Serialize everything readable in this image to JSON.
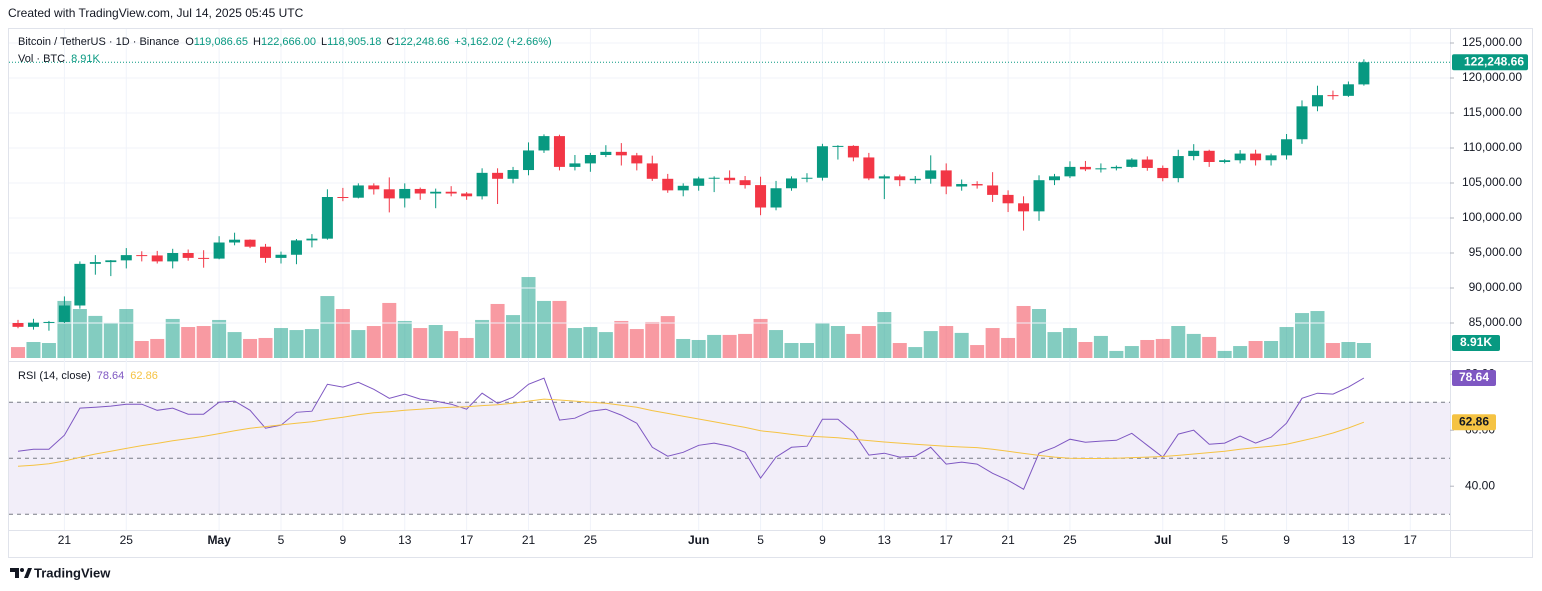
{
  "page": {
    "created": "Created with TradingView.com, Jul 14, 2025 05:45 UTC",
    "brand": "TradingView"
  },
  "chart_data": [
    {
      "type": "candlestick",
      "title": "Bitcoin / TetherUS · 1D · Binance",
      "legend_labels": [
        "O",
        "H",
        "L",
        "C"
      ],
      "legend_values": [
        "119,086.65",
        "122,666.00",
        "118,905.18",
        "122,248.66"
      ],
      "change": "+3,162.02 (+2.66%)",
      "up_color": "#089981",
      "down_color": "#f23645",
      "categories": [
        null,
        null,
        null,
        "21",
        null,
        null,
        null,
        "25",
        null,
        null,
        null,
        null,
        null,
        "May",
        null,
        null,
        null,
        "5",
        null,
        null,
        null,
        "9",
        null,
        null,
        null,
        "13",
        null,
        null,
        null,
        "17",
        null,
        null,
        null,
        "21",
        null,
        null,
        null,
        "25",
        null,
        null,
        null,
        null,
        null,
        null,
        "Jun",
        null,
        null,
        null,
        "5",
        null,
        null,
        null,
        "9",
        null,
        null,
        null,
        "13",
        null,
        null,
        null,
        "17",
        null,
        null,
        null,
        "21",
        null,
        null,
        null,
        "25",
        null,
        null,
        null,
        null,
        null,
        "Jul",
        null,
        null,
        null,
        "5",
        null,
        null,
        null,
        "9",
        null,
        null,
        null,
        "13",
        null,
        null,
        null,
        "17",
        null,
        null
      ],
      "open": [
        85000,
        84450,
        85050,
        85150,
        87500,
        93450,
        93700,
        93950,
        94700,
        94650,
        93800,
        95000,
        94300,
        94200,
        96500,
        96900,
        95900,
        94300,
        94750,
        96800,
        97050,
        103000,
        102900,
        104650,
        104100,
        102800,
        104150,
        103500,
        103750,
        103500,
        103100,
        106450,
        105600,
        106850,
        109650,
        111700,
        107300,
        107800,
        109000,
        109450,
        108950,
        107800,
        105600,
        103950,
        104600,
        105650,
        105750,
        105400,
        104700,
        101500,
        104250,
        105650,
        105750,
        110250,
        110300,
        108650,
        105650,
        105950,
        105400,
        105600,
        106800,
        104500,
        104850,
        104650,
        103300,
        102100,
        100950,
        105400,
        105950,
        107300,
        106950,
        107100,
        107300,
        108350,
        107150,
        105700,
        108850,
        109600,
        108000,
        108250,
        109200,
        108250,
        108950,
        111250,
        115950,
        117550,
        117450,
        119086.65,
        null,
        null,
        null,
        null,
        null
      ],
      "high": [
        85450,
        85600,
        85300,
        88800,
        93800,
        94700,
        94000,
        95700,
        95250,
        95300,
        95600,
        95500,
        95400,
        97400,
        97900,
        96950,
        96300,
        95200,
        97000,
        97700,
        104100,
        104300,
        104950,
        104950,
        105800,
        104950,
        104350,
        104200,
        104550,
        103700,
        107100,
        107100,
        107300,
        110800,
        111950,
        111900,
        109000,
        109300,
        110400,
        110700,
        109300,
        108900,
        106300,
        104950,
        105900,
        105950,
        106800,
        106000,
        105900,
        105300,
        105950,
        106400,
        110600,
        110400,
        110400,
        109300,
        106200,
        106200,
        106000,
        108950,
        107800,
        105500,
        105250,
        106550,
        103950,
        103100,
        106100,
        106300,
        108100,
        108150,
        107800,
        107500,
        108550,
        108800,
        107500,
        109750,
        110550,
        109750,
        108400,
        109700,
        109750,
        109200,
        112000,
        116800,
        118900,
        118200,
        119500,
        122666,
        null,
        null,
        null,
        null,
        null
      ],
      "low": [
        84250,
        84050,
        83900,
        85000,
        87050,
        91900,
        91700,
        92800,
        93800,
        93500,
        92800,
        93900,
        92900,
        94100,
        96100,
        95700,
        93600,
        93500,
        93400,
        95800,
        96900,
        102400,
        102800,
        103350,
        100800,
        101500,
        102600,
        101400,
        103100,
        102600,
        102650,
        102000,
        104950,
        106100,
        109300,
        106800,
        106800,
        106600,
        108700,
        107500,
        106800,
        105300,
        103600,
        103100,
        103900,
        103700,
        104900,
        104200,
        100400,
        101100,
        103900,
        105100,
        105350,
        108350,
        108100,
        105400,
        102700,
        104550,
        104900,
        104900,
        103400,
        103900,
        104200,
        102300,
        100850,
        98200,
        99600,
        104700,
        105700,
        106700,
        106500,
        106800,
        107200,
        106750,
        105250,
        105100,
        108250,
        107300,
        107800,
        107800,
        107500,
        107500,
        108350,
        110600,
        115250,
        116900,
        117300,
        118905.18,
        null,
        null,
        null,
        null,
        null
      ],
      "close": [
        84450,
        85050,
        85150,
        87500,
        93450,
        93700,
        93950,
        94700,
        94650,
        93800,
        95000,
        94300,
        94200,
        96500,
        96900,
        95900,
        94300,
        94750,
        96800,
        97050,
        103000,
        102900,
        104650,
        104100,
        102800,
        104150,
        103500,
        103750,
        103500,
        103100,
        106450,
        105600,
        106850,
        109650,
        111700,
        107300,
        107800,
        109000,
        109450,
        108950,
        107800,
        105600,
        103950,
        104600,
        105650,
        105750,
        105400,
        104700,
        101500,
        104250,
        105650,
        105750,
        110250,
        110300,
        108650,
        105650,
        105950,
        105400,
        105600,
        106800,
        104500,
        104850,
        104650,
        103300,
        102100,
        100950,
        105400,
        105950,
        107300,
        106950,
        107100,
        107300,
        108350,
        107150,
        105700,
        108850,
        109600,
        108000,
        108250,
        109200,
        108250,
        108950,
        111250,
        115950,
        117550,
        117450,
        119100,
        122248.66,
        null,
        null,
        null,
        null,
        null
      ],
      "ylim": [
        80000,
        127000
      ],
      "yticks": [
        {
          "value": 85000,
          "label": "85,000.00"
        },
        {
          "value": 90000,
          "label": "90,000.00"
        },
        {
          "value": 95000,
          "label": "95,000.00"
        },
        {
          "value": 100000,
          "label": "100,000.00"
        },
        {
          "value": 105000,
          "label": "105,000.00"
        },
        {
          "value": 110000,
          "label": "110,000.00"
        },
        {
          "value": 115000,
          "label": "115,000.00"
        },
        {
          "value": 120000,
          "label": "120,000.00"
        },
        {
          "value": 125000,
          "label": "125,000.00"
        }
      ],
      "grid": true
    },
    {
      "type": "bar",
      "title": "Vol · BTC",
      "last_label": "8.91K",
      "color_by_candle": true,
      "opacity": 0.5,
      "values": [
        6.5,
        9.5,
        8.9,
        33.9,
        29.1,
        25.0,
        20.8,
        29.1,
        10.1,
        11.3,
        23.2,
        18.4,
        19.0,
        22.6,
        15.4,
        11.3,
        11.9,
        17.8,
        16.6,
        17.2,
        36.8,
        29.1,
        16.6,
        19.0,
        32.7,
        22.0,
        17.8,
        19.6,
        16.0,
        11.9,
        22.6,
        32.1,
        25.5,
        48.1,
        33.9,
        33.9,
        17.8,
        18.4,
        15.4,
        22.0,
        17.2,
        21.4,
        24.9,
        11.3,
        10.7,
        13.7,
        13.7,
        14.3,
        23.2,
        16.6,
        8.9,
        8.9,
        20.8,
        19.0,
        14.3,
        19.0,
        27.3,
        8.9,
        6.5,
        16.0,
        19.0,
        14.9,
        7.7,
        17.8,
        11.9,
        30.9,
        29.1,
        15.4,
        17.8,
        9.5,
        13.1,
        4.2,
        7.1,
        10.7,
        11.3,
        19.0,
        14.3,
        12.5,
        4.2,
        7.1,
        10.1,
        10.1,
        18.4,
        26.7,
        27.9,
        8.9,
        9.5,
        8.91,
        null,
        null,
        null,
        null,
        null
      ],
      "ylim": [
        0,
        60
      ]
    },
    {
      "type": "line",
      "title": "RSI (14, close)",
      "series": [
        {
          "color": "#7e57c2",
          "last_label": "78.64",
          "values": [
            52.5,
            53.2,
            53.2,
            58.2,
            67.9,
            68.2,
            68.6,
            69.3,
            69.3,
            67.1,
            67.9,
            65.7,
            65.7,
            70.0,
            70.4,
            67.1,
            60.7,
            61.8,
            66.4,
            66.8,
            76.4,
            75.4,
            77.1,
            74.6,
            71.4,
            72.9,
            71.1,
            70.4,
            69.3,
            67.5,
            73.2,
            69.6,
            71.8,
            76.4,
            78.6,
            63.6,
            64.3,
            66.8,
            67.5,
            65.4,
            62.5,
            53.9,
            50.7,
            52.1,
            54.6,
            55.4,
            54.3,
            52.1,
            42.9,
            50.4,
            53.9,
            54.3,
            63.9,
            63.9,
            59.3,
            51.1,
            51.8,
            50.4,
            50.7,
            53.9,
            47.9,
            48.6,
            47.9,
            44.6,
            42.1,
            38.9,
            51.8,
            53.9,
            56.8,
            55.7,
            56.1,
            56.4,
            58.9,
            54.6,
            50.4,
            58.6,
            60.0,
            55.0,
            55.4,
            57.9,
            55.4,
            57.5,
            62.5,
            71.4,
            73.2,
            72.9,
            75.4,
            78.64,
            null,
            null,
            null,
            null,
            null
          ]
        },
        {
          "color": "#f5c343",
          "last_label": "62.86",
          "values": [
            47.1,
            47.5,
            48.0,
            49.0,
            50.3,
            51.5,
            52.5,
            53.5,
            54.5,
            55.3,
            56.2,
            57.0,
            57.8,
            58.8,
            59.8,
            60.7,
            61.3,
            61.9,
            62.5,
            63.0,
            63.9,
            64.6,
            65.5,
            66.2,
            66.6,
            67.1,
            67.5,
            67.9,
            68.2,
            68.4,
            68.8,
            69.1,
            69.6,
            70.4,
            71.1,
            70.8,
            70.4,
            70.0,
            69.6,
            68.9,
            68.2,
            67.0,
            66.0,
            65.0,
            64.0,
            63.0,
            62.0,
            61.0,
            59.8,
            59.2,
            58.5,
            57.9,
            57.6,
            57.3,
            56.8,
            56.3,
            55.8,
            55.4,
            55.0,
            54.6,
            54.3,
            54.0,
            53.8,
            53.2,
            52.5,
            51.7,
            51.0,
            50.4,
            50.0,
            49.9,
            49.9,
            50.0,
            50.2,
            50.4,
            50.6,
            51.0,
            51.5,
            52.0,
            52.5,
            53.2,
            53.8,
            54.3,
            55.0,
            56.2,
            57.5,
            59.0,
            60.8,
            62.86,
            null,
            null,
            null,
            null,
            null
          ]
        }
      ],
      "ylim": [
        24,
        84
      ],
      "yticks": [
        {
          "value": 40,
          "label": "40.00"
        },
        {
          "value": 60,
          "label": "60.00"
        },
        {
          "value": 80,
          "label": "80.00"
        }
      ],
      "upper_band": 70,
      "middle_band": 50,
      "lower_band": 30,
      "band_color": "#7e57c2"
    }
  ]
}
